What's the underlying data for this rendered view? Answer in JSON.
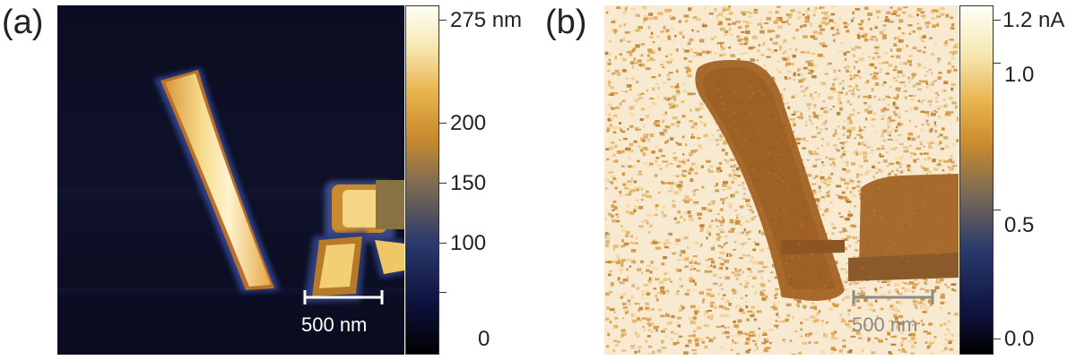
{
  "panels": [
    {
      "label": "(a)",
      "scalebar": "500 nm",
      "colorbar": {
        "unit_label": "275 nm",
        "ticks": [
          "200",
          "150",
          "100",
          "0"
        ],
        "colors": [
          "#000000",
          "#0f1340",
          "#2b3a6c",
          "#7a6a55",
          "#c88a2e",
          "#e8b24a",
          "#f6e7b0",
          "#fffef6"
        ]
      }
    },
    {
      "label": "(b)",
      "scalebar": "500 nm",
      "colorbar": {
        "unit_label": "1.2 nA",
        "ticks": [
          "1.0",
          "0.5",
          "0.0"
        ],
        "colors": [
          "#000000",
          "#0f1340",
          "#2b3a6c",
          "#7a6a55",
          "#c88a2e",
          "#e8b24a",
          "#f6e7b0",
          "#fffef6"
        ]
      }
    }
  ]
}
